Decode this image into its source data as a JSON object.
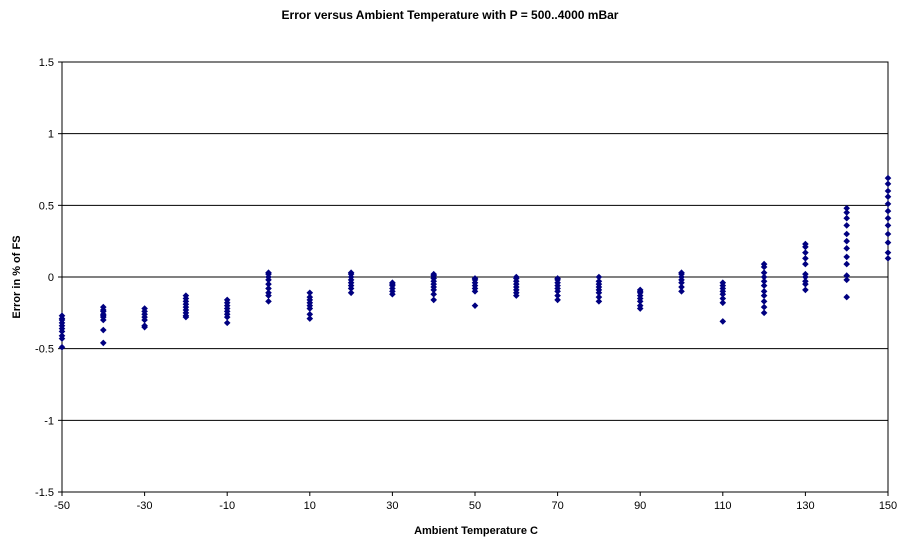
{
  "chart_data": {
    "type": "scatter",
    "title": "Error versus Ambient Temperature with P = 500..4000 mBar",
    "xlabel": "Ambient Temperature C",
    "ylabel": "Error in % of FS",
    "xlim": [
      -50,
      150
    ],
    "ylim": [
      -1.5,
      1.5
    ],
    "x_ticks": [
      -50,
      -30,
      -10,
      10,
      30,
      50,
      70,
      90,
      110,
      130,
      150
    ],
    "y_ticks": [
      -1.5,
      -1,
      -0.5,
      0,
      0.5,
      1,
      1.5
    ],
    "x_tick_labels": [
      "-50",
      "-30",
      "-10",
      "10",
      "30",
      "50",
      "70",
      "90",
      "110",
      "130",
      "150"
    ],
    "y_tick_labels": [
      "-1.5",
      "-1",
      "-0.5",
      "0",
      "0.5",
      "1",
      "1.5"
    ],
    "grid": "horizontal",
    "legend": "none",
    "marker_color": "#000080",
    "points_by_x": [
      {
        "x": -50,
        "y": [
          -0.27,
          -0.29,
          -0.3,
          -0.32,
          -0.34,
          -0.36,
          -0.38,
          -0.41,
          -0.43,
          -0.49
        ]
      },
      {
        "x": -40,
        "y": [
          -0.21,
          -0.23,
          -0.24,
          -0.26,
          -0.27,
          -0.28,
          -0.3,
          -0.37,
          -0.46
        ]
      },
      {
        "x": -30,
        "y": [
          -0.22,
          -0.24,
          -0.26,
          -0.28,
          -0.3,
          -0.34,
          -0.35
        ]
      },
      {
        "x": -20,
        "y": [
          -0.13,
          -0.15,
          -0.17,
          -0.19,
          -0.21,
          -0.23,
          -0.25,
          -0.27,
          -0.28
        ]
      },
      {
        "x": -10,
        "y": [
          -0.16,
          -0.18,
          -0.2,
          -0.22,
          -0.24,
          -0.26,
          -0.28,
          -0.32
        ]
      },
      {
        "x": 0,
        "y": [
          0.03,
          0.02,
          0.0,
          -0.02,
          -0.05,
          -0.08,
          -0.11,
          -0.13,
          -0.17
        ]
      },
      {
        "x": 10,
        "y": [
          -0.11,
          -0.14,
          -0.16,
          -0.18,
          -0.2,
          -0.22,
          -0.26,
          -0.29
        ]
      },
      {
        "x": 20,
        "y": [
          0.03,
          0.02,
          0.0,
          -0.02,
          -0.04,
          -0.06,
          -0.08,
          -0.11
        ]
      },
      {
        "x": 30,
        "y": [
          -0.04,
          -0.05,
          -0.06,
          -0.08,
          -0.1,
          -0.12
        ]
      },
      {
        "x": 40,
        "y": [
          0.02,
          0.01,
          -0.01,
          -0.03,
          -0.05,
          -0.07,
          -0.09,
          -0.12,
          -0.16
        ]
      },
      {
        "x": 50,
        "y": [
          -0.01,
          -0.02,
          -0.04,
          -0.06,
          -0.08,
          -0.1,
          -0.2
        ]
      },
      {
        "x": 60,
        "y": [
          0.0,
          -0.01,
          -0.03,
          -0.05,
          -0.07,
          -0.09,
          -0.11,
          -0.13
        ]
      },
      {
        "x": 70,
        "y": [
          -0.01,
          -0.02,
          -0.04,
          -0.06,
          -0.08,
          -0.1,
          -0.13,
          -0.16
        ]
      },
      {
        "x": 80,
        "y": [
          0.0,
          -0.03,
          -0.05,
          -0.07,
          -0.09,
          -0.11,
          -0.14,
          -0.17
        ]
      },
      {
        "x": 90,
        "y": [
          -0.09,
          -0.1,
          -0.11,
          -0.13,
          -0.15,
          -0.17,
          -0.2,
          -0.22
        ]
      },
      {
        "x": 100,
        "y": [
          0.03,
          0.02,
          0.0,
          -0.02,
          -0.04,
          -0.07,
          -0.1
        ]
      },
      {
        "x": 110,
        "y": [
          -0.04,
          -0.06,
          -0.08,
          -0.1,
          -0.12,
          -0.15,
          -0.18,
          -0.31
        ]
      },
      {
        "x": 120,
        "y": [
          0.09,
          0.07,
          0.03,
          0.0,
          -0.03,
          -0.06,
          -0.1,
          -0.13,
          -0.17,
          -0.21,
          -0.25
        ]
      },
      {
        "x": 130,
        "y": [
          0.23,
          0.21,
          0.17,
          0.13,
          0.09,
          0.02,
          0.0,
          -0.03,
          -0.05,
          -0.09
        ]
      },
      {
        "x": 140,
        "y": [
          0.48,
          0.45,
          0.41,
          0.36,
          0.3,
          0.25,
          0.2,
          0.14,
          0.09,
          0.01,
          -0.02,
          -0.14
        ]
      },
      {
        "x": 150,
        "y": [
          0.69,
          0.65,
          0.6,
          0.56,
          0.51,
          0.46,
          0.41,
          0.36,
          0.3,
          0.24,
          0.17,
          0.13
        ]
      }
    ]
  }
}
